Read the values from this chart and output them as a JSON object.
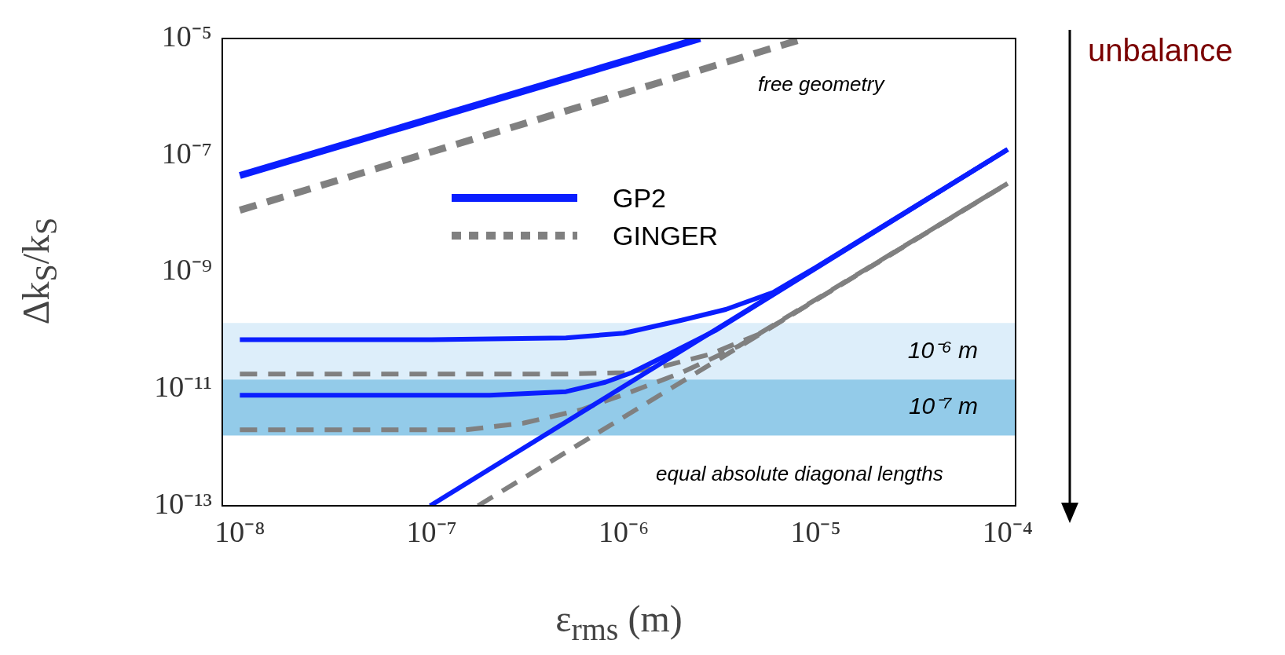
{
  "chart_data": {
    "type": "line",
    "xlabel": "ε$_{rms}$ (m)",
    "ylabel": "Δk$_{S}$/k$_{S}$",
    "log": "xy",
    "grid": false,
    "legend": "top",
    "marker": "none",
    "xlim": [
      8.1e-09,
      0.00011
    ],
    "ylim": [
      1e-13,
      1e-05
    ],
    "xticks": [
      {
        "value": 1e-08,
        "label": "10⁻⁸"
      },
      {
        "value": 1e-07,
        "label": "10⁻⁷"
      },
      {
        "value": 1e-06,
        "label": "10⁻⁶"
      },
      {
        "value": 1e-05,
        "label": "10⁻⁵"
      },
      {
        "value": 0.0001,
        "label": "10⁻⁴"
      }
    ],
    "yticks": [
      {
        "value": 1e-13,
        "label": "10⁻¹³"
      },
      {
        "value": 1e-11,
        "label": "10⁻¹¹"
      },
      {
        "value": 1e-09,
        "label": "10⁻⁹"
      },
      {
        "value": 1e-07,
        "label": "10⁻⁷"
      },
      {
        "value": 1e-05,
        "label": "10⁻⁵"
      }
    ],
    "series": [
      {
        "name": "GP2",
        "color": "#0a1eff",
        "line_style": "solid",
        "x": [
          1e-08,
          2.5e-06
        ],
        "values": [
          4.5e-08,
          1e-05
        ]
      },
      {
        "name": "GINGER",
        "color": "#808080",
        "line_style": "dashed",
        "x": [
          1e-08,
          8.7e-06
        ],
        "values": [
          1.15e-08,
          1e-05
        ]
      },
      {
        "color": "#0a1eff",
        "line_style": "solid",
        "x": [
          9.8e-08,
          0.0001
        ],
        "values": [
          1e-13,
          1.26e-07
        ]
      },
      {
        "color": "#808080",
        "line_style": "dashed",
        "x": [
          1.74e-07,
          0.0001
        ],
        "values": [
          1e-13,
          3.3e-08
        ]
      },
      {
        "color": "#0a1eff",
        "line_style": "solid",
        "x": [
          1e-08,
          1e-07,
          5e-07,
          1e-06,
          2e-06,
          3.4e-06,
          6e-06,
          1e-05,
          0.0001
        ],
        "values": [
          7e-11,
          7e-11,
          7.5e-11,
          9e-11,
          1.5e-10,
          2.3e-10,
          4.5e-10,
          1.2e-09,
          1.26e-07
        ]
      },
      {
        "color": "#0a1eff",
        "line_style": "solid",
        "x": [
          1e-08,
          2e-07,
          5e-07,
          8e-07,
          1.1e-06,
          1.6e-06,
          3e-06,
          0.0001
        ],
        "values": [
          7.8e-12,
          7.8e-12,
          9e-12,
          1.3e-11,
          1.9e-11,
          3.5e-11,
          1e-10,
          1.26e-07
        ]
      },
      {
        "color": "#808080",
        "line_style": "dashed",
        "x": [
          1e-08,
          5e-07,
          1e-06,
          1.5e-06,
          2.8e-06,
          5.2e-06,
          0.0001
        ],
        "values": [
          1.8e-11,
          1.8e-11,
          1.9e-11,
          2.3e-11,
          3.9e-11,
          9e-11,
          3.3e-08
        ]
      },
      {
        "color": "#808080",
        "line_style": "dashed",
        "x": [
          1e-08,
          1.5e-07,
          3e-07,
          6e-07,
          1.1e-06,
          2e-06,
          4e-06,
          0.0001
        ],
        "values": [
          2e-12,
          2e-12,
          2.6e-12,
          4.4e-12,
          9e-12,
          1.9e-11,
          5.5e-11,
          3.3e-08
        ]
      }
    ],
    "bands": [
      {
        "axis": "y",
        "from": 1.45e-11,
        "to": 1.35e-10,
        "label": "10⁻⁶ m",
        "color": "#ddeefa"
      },
      {
        "axis": "y",
        "from": 1.6e-12,
        "to": 1.45e-11,
        "label": "10⁻⁷ m",
        "color": "#93cbe9"
      }
    ],
    "annotations": [
      "free geometry",
      "equal absolute diagonal lengths",
      "unbalance"
    ]
  }
}
